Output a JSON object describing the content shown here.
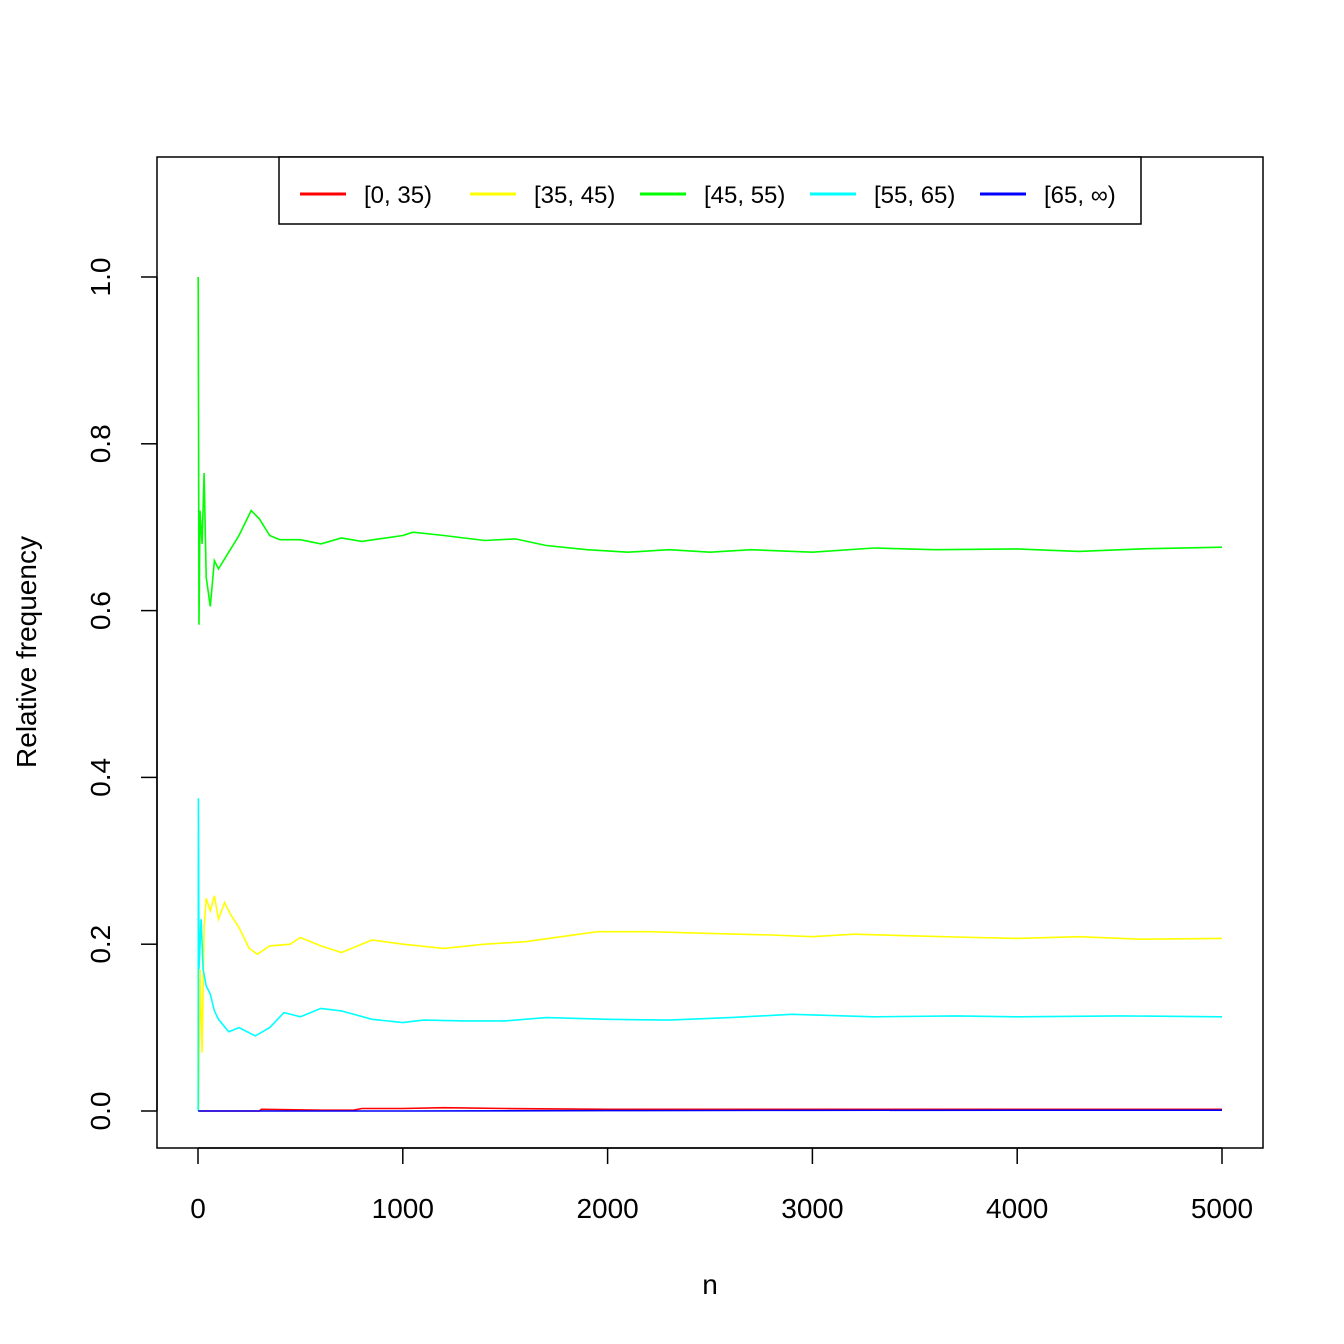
{
  "chart_data": {
    "type": "line",
    "title": "",
    "xlabel": "n",
    "ylabel": "Relative frequency",
    "xlim": [
      0,
      5000
    ],
    "ylim": [
      0,
      1.1
    ],
    "xticks": [
      "0",
      "1000",
      "2000",
      "3000",
      "4000",
      "5000"
    ],
    "yticks": [
      "0.0",
      "0.2",
      "0.4",
      "0.6",
      "0.8",
      "1.0"
    ],
    "grid": false,
    "legend_position": "top",
    "series": [
      {
        "name": "[0, 35)",
        "color": "#ff0000",
        "x": [
          1,
          300,
          310,
          600,
          760,
          800,
          1000,
          1200,
          1500,
          2000,
          2500,
          3000,
          3500,
          4000,
          4500,
          5000
        ],
        "y": [
          0,
          0,
          0.002,
          0.001,
          0.001,
          0.003,
          0.003,
          0.004,
          0.003,
          0.002,
          0.002,
          0.002,
          0.002,
          0.002,
          0.002,
          0.002
        ]
      },
      {
        "name": "[35, 45)",
        "color": "#ffff00",
        "x": [
          1,
          3,
          10,
          20,
          30,
          40,
          60,
          80,
          100,
          130,
          160,
          200,
          250,
          290,
          350,
          450,
          500,
          600,
          700,
          850,
          1000,
          1200,
          1400,
          1600,
          1800,
          1950,
          2200,
          2500,
          2800,
          3000,
          3200,
          3500,
          3800,
          4000,
          4300,
          4600,
          5000
        ],
        "y": [
          0,
          0,
          0.17,
          0.07,
          0.22,
          0.255,
          0.24,
          0.258,
          0.23,
          0.25,
          0.235,
          0.22,
          0.195,
          0.188,
          0.198,
          0.2,
          0.208,
          0.198,
          0.19,
          0.205,
          0.2,
          0.195,
          0.2,
          0.203,
          0.21,
          0.215,
          0.215,
          0.213,
          0.211,
          0.209,
          0.212,
          0.21,
          0.208,
          0.207,
          0.209,
          0.206,
          0.207
        ]
      },
      {
        "name": "[45, 55)",
        "color": "#00ff00",
        "x": [
          1,
          5,
          10,
          20,
          30,
          40,
          60,
          80,
          100,
          150,
          200,
          260,
          300,
          350,
          400,
          500,
          600,
          700,
          800,
          1000,
          1050,
          1200,
          1400,
          1550,
          1700,
          1900,
          2100,
          2300,
          2500,
          2700,
          3000,
          3300,
          3600,
          4000,
          4300,
          4600,
          5000
        ],
        "y": [
          1.0,
          0.583,
          0.72,
          0.68,
          0.765,
          0.64,
          0.605,
          0.66,
          0.65,
          0.67,
          0.69,
          0.72,
          0.71,
          0.69,
          0.685,
          0.685,
          0.68,
          0.687,
          0.683,
          0.69,
          0.694,
          0.69,
          0.684,
          0.686,
          0.678,
          0.673,
          0.67,
          0.673,
          0.67,
          0.673,
          0.67,
          0.675,
          0.673,
          0.674,
          0.671,
          0.674,
          0.676
        ]
      },
      {
        "name": "[55, 65)",
        "color": "#00ffff",
        "x": [
          1,
          2,
          5,
          15,
          25,
          40,
          60,
          80,
          100,
          150,
          200,
          280,
          350,
          420,
          500,
          600,
          700,
          850,
          1000,
          1100,
          1300,
          1500,
          1700,
          2000,
          2300,
          2600,
          2900,
          3300,
          3700,
          4000,
          4500,
          5000
        ],
        "y": [
          0,
          0.375,
          0.17,
          0.23,
          0.17,
          0.15,
          0.14,
          0.12,
          0.11,
          0.095,
          0.1,
          0.09,
          0.1,
          0.118,
          0.113,
          0.123,
          0.12,
          0.11,
          0.106,
          0.109,
          0.108,
          0.108,
          0.112,
          0.11,
          0.109,
          0.112,
          0.116,
          0.113,
          0.114,
          0.113,
          0.114,
          0.113
        ]
      },
      {
        "name": "[65, ∞)",
        "color": "#0000ff",
        "x": [
          1,
          1000,
          2000,
          3000,
          4000,
          5000
        ],
        "y": [
          0,
          0,
          0.0005,
          0.0008,
          0.001,
          0.001
        ]
      }
    ]
  }
}
